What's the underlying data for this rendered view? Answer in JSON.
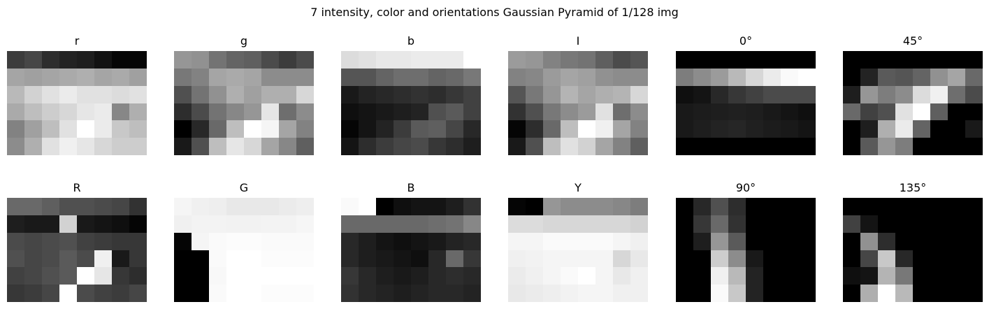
{
  "figure": {
    "title": "7 intensity, color and orientations Gaussian Pyramid of 1/128 img"
  },
  "chart_data": {
    "type": "heatmap",
    "colormap": "gray",
    "grid": false,
    "axes_visible": false,
    "rows": 2,
    "cols": 6,
    "panels": [
      {
        "title": "r",
        "values": [
          [
            60,
            70,
            45,
            35,
            30,
            18,
            5,
            5
          ],
          [
            165,
            160,
            165,
            170,
            175,
            165,
            170,
            160
          ],
          [
            185,
            210,
            225,
            235,
            225,
            225,
            220,
            225
          ],
          [
            170,
            190,
            205,
            215,
            230,
            235,
            135,
            175
          ],
          [
            130,
            160,
            190,
            225,
            255,
            235,
            200,
            190
          ],
          [
            140,
            175,
            225,
            240,
            230,
            215,
            205,
            205
          ]
        ]
      },
      {
        "title": "g",
        "values": [
          [
            150,
            145,
            115,
            100,
            95,
            75,
            60,
            75
          ],
          [
            120,
            130,
            165,
            170,
            165,
            140,
            140,
            140
          ],
          [
            80,
            115,
            145,
            175,
            160,
            175,
            175,
            215
          ],
          [
            45,
            75,
            115,
            135,
            150,
            230,
            110,
            140
          ],
          [
            0,
            40,
            105,
            190,
            255,
            245,
            165,
            130
          ],
          [
            25,
            80,
            190,
            230,
            215,
            165,
            135,
            95
          ]
        ]
      },
      {
        "title": "b",
        "values": [
          [
            220,
            225,
            232,
            232,
            235,
            235,
            235,
            255
          ],
          [
            85,
            85,
            100,
            110,
            110,
            100,
            105,
            120
          ],
          [
            25,
            35,
            40,
            45,
            50,
            45,
            55,
            65
          ],
          [
            15,
            20,
            25,
            30,
            35,
            80,
            90,
            65
          ],
          [
            5,
            20,
            35,
            60,
            90,
            95,
            70,
            40
          ],
          [
            20,
            45,
            60,
            70,
            75,
            55,
            45,
            30
          ]
        ]
      },
      {
        "title": "I",
        "values": [
          [
            155,
            150,
            130,
            120,
            115,
            95,
            75,
            85
          ],
          [
            130,
            135,
            155,
            165,
            160,
            145,
            140,
            140
          ],
          [
            85,
            120,
            150,
            180,
            165,
            175,
            180,
            215
          ],
          [
            50,
            80,
            120,
            140,
            155,
            225,
            110,
            140
          ],
          [
            5,
            45,
            105,
            190,
            255,
            240,
            165,
            130
          ],
          [
            25,
            80,
            190,
            225,
            210,
            165,
            130,
            95
          ]
        ]
      },
      {
        "title": "0°",
        "values": [
          [
            0,
            0,
            0,
            0,
            0,
            0,
            0,
            0
          ],
          [
            125,
            140,
            155,
            185,
            215,
            235,
            250,
            255
          ],
          [
            15,
            20,
            40,
            55,
            65,
            75,
            75,
            75
          ],
          [
            25,
            28,
            30,
            32,
            30,
            25,
            20,
            15
          ],
          [
            25,
            30,
            35,
            38,
            32,
            28,
            25,
            20
          ],
          [
            0,
            0,
            0,
            0,
            0,
            0,
            0,
            0
          ]
        ]
      },
      {
        "title": "45°",
        "values": [
          [
            0,
            0,
            0,
            0,
            0,
            0,
            0,
            0
          ],
          [
            0,
            35,
            90,
            85,
            100,
            145,
            165,
            105
          ],
          [
            30,
            150,
            125,
            140,
            220,
            240,
            110,
            75
          ],
          [
            105,
            65,
            80,
            225,
            255,
            95,
            0,
            0
          ],
          [
            0,
            30,
            175,
            235,
            100,
            0,
            0,
            25
          ],
          [
            0,
            90,
            150,
            125,
            0,
            0,
            0,
            0
          ]
        ]
      },
      {
        "title": "R",
        "values": [
          [
            105,
            105,
            95,
            80,
            80,
            75,
            70,
            50
          ],
          [
            30,
            25,
            25,
            210,
            25,
            20,
            15,
            5
          ],
          [
            75,
            70,
            75,
            80,
            65,
            60,
            55,
            55
          ],
          [
            80,
            70,
            75,
            90,
            75,
            240,
            25,
            55
          ],
          [
            65,
            70,
            80,
            90,
            255,
            230,
            55,
            45
          ],
          [
            55,
            60,
            70,
            255,
            75,
            65,
            60,
            70
          ]
        ]
      },
      {
        "title": "G",
        "values": [
          [
            245,
            240,
            238,
            232,
            232,
            232,
            235,
            238
          ],
          [
            240,
            243,
            243,
            242,
            242,
            243,
            243,
            246
          ],
          [
            5,
            245,
            250,
            252,
            252,
            250,
            250,
            250
          ],
          [
            0,
            0,
            250,
            255,
            255,
            252,
            252,
            252
          ],
          [
            0,
            0,
            248,
            255,
            255,
            255,
            255,
            255
          ],
          [
            0,
            0,
            250,
            255,
            255,
            252,
            252,
            252
          ]
        ]
      },
      {
        "title": "B",
        "values": [
          [
            250,
            255,
            0,
            15,
            20,
            20,
            30,
            50
          ],
          [
            105,
            105,
            105,
            105,
            105,
            110,
            115,
            135
          ],
          [
            40,
            30,
            20,
            15,
            20,
            25,
            35,
            40
          ],
          [
            40,
            30,
            25,
            20,
            15,
            40,
            105,
            55
          ],
          [
            55,
            40,
            30,
            25,
            30,
            40,
            45,
            40
          ],
          [
            50,
            40,
            35,
            30,
            35,
            40,
            40,
            35
          ]
        ]
      },
      {
        "title": "Y",
        "values": [
          [
            5,
            0,
            150,
            140,
            140,
            140,
            135,
            125
          ],
          [
            220,
            220,
            215,
            215,
            215,
            215,
            215,
            210
          ],
          [
            245,
            245,
            250,
            250,
            250,
            250,
            245,
            240
          ],
          [
            240,
            242,
            245,
            245,
            245,
            245,
            215,
            232
          ],
          [
            235,
            240,
            245,
            250,
            255,
            245,
            232,
            240
          ],
          [
            232,
            235,
            238,
            242,
            245,
            245,
            240,
            240
          ]
        ]
      },
      {
        "title": "90°",
        "values": [
          [
            0,
            40,
            80,
            45,
            0,
            0,
            0,
            0
          ],
          [
            0,
            55,
            105,
            50,
            0,
            0,
            0,
            0
          ],
          [
            0,
            30,
            150,
            90,
            0,
            0,
            0,
            0
          ],
          [
            0,
            0,
            205,
            140,
            25,
            0,
            0,
            0
          ],
          [
            0,
            0,
            240,
            185,
            35,
            0,
            0,
            0
          ],
          [
            0,
            0,
            250,
            200,
            35,
            0,
            0,
            0
          ]
        ]
      },
      {
        "title": "135°",
        "values": [
          [
            0,
            0,
            0,
            0,
            0,
            0,
            0,
            0
          ],
          [
            65,
            20,
            0,
            0,
            0,
            0,
            0,
            0
          ],
          [
            0,
            145,
            45,
            0,
            0,
            0,
            0,
            0
          ],
          [
            0,
            70,
            200,
            40,
            0,
            0,
            0,
            0
          ],
          [
            15,
            20,
            180,
            120,
            0,
            0,
            0,
            0
          ],
          [
            0,
            175,
            255,
            185,
            0,
            0,
            0,
            0
          ]
        ]
      }
    ]
  }
}
